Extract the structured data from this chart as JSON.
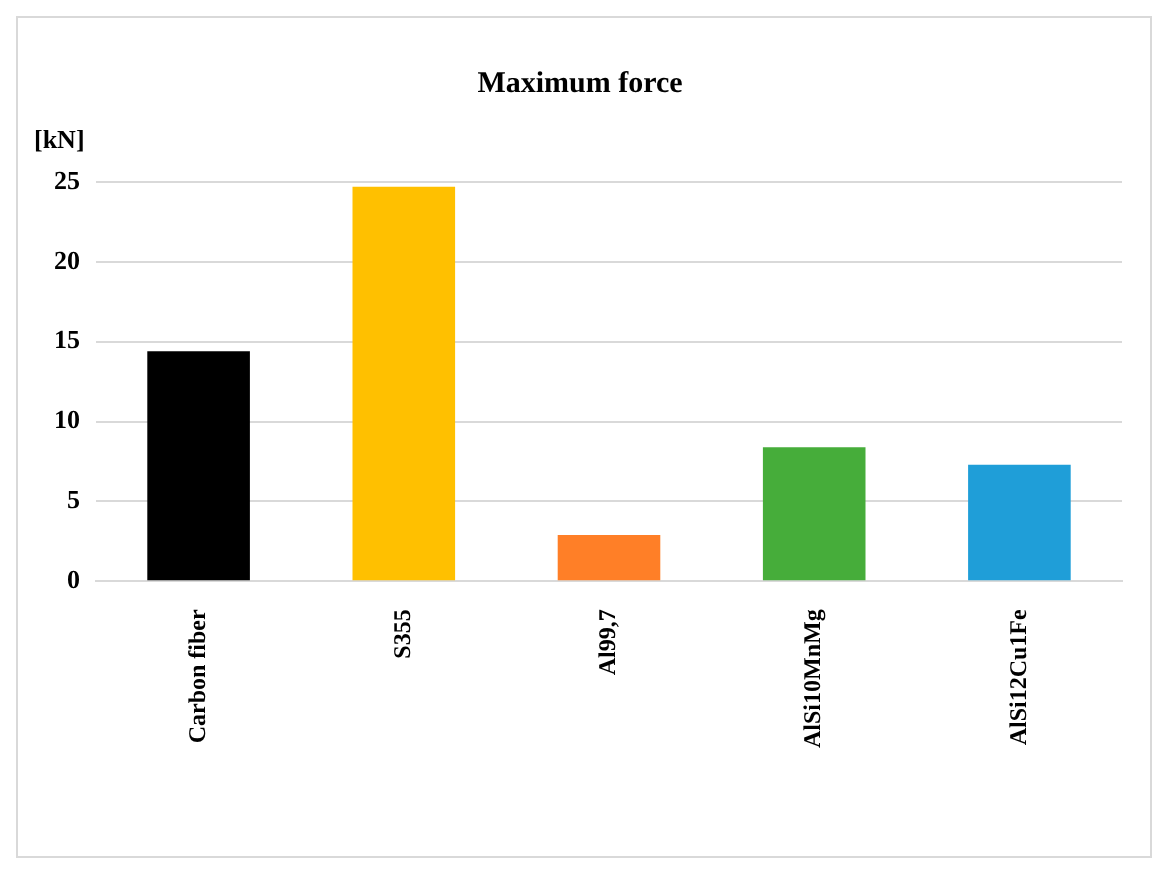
{
  "chart_data": {
    "type": "bar",
    "title": "Maximum force",
    "ylabel": "[kN]",
    "categories": [
      "Carbon fiber",
      "S355",
      "Al99,7",
      "AlSi10MnMg",
      "AlSi12Cu1Fe"
    ],
    "values": [
      14.4,
      24.7,
      2.9,
      8.4,
      7.3
    ],
    "colors": [
      "#000000",
      "#ffc000",
      "#ff7f27",
      "#46ad3a",
      "#1f9ed8"
    ],
    "ylim": [
      0,
      25
    ],
    "yticks": [
      0,
      5,
      10,
      15,
      20,
      25
    ],
    "grid": "y"
  }
}
